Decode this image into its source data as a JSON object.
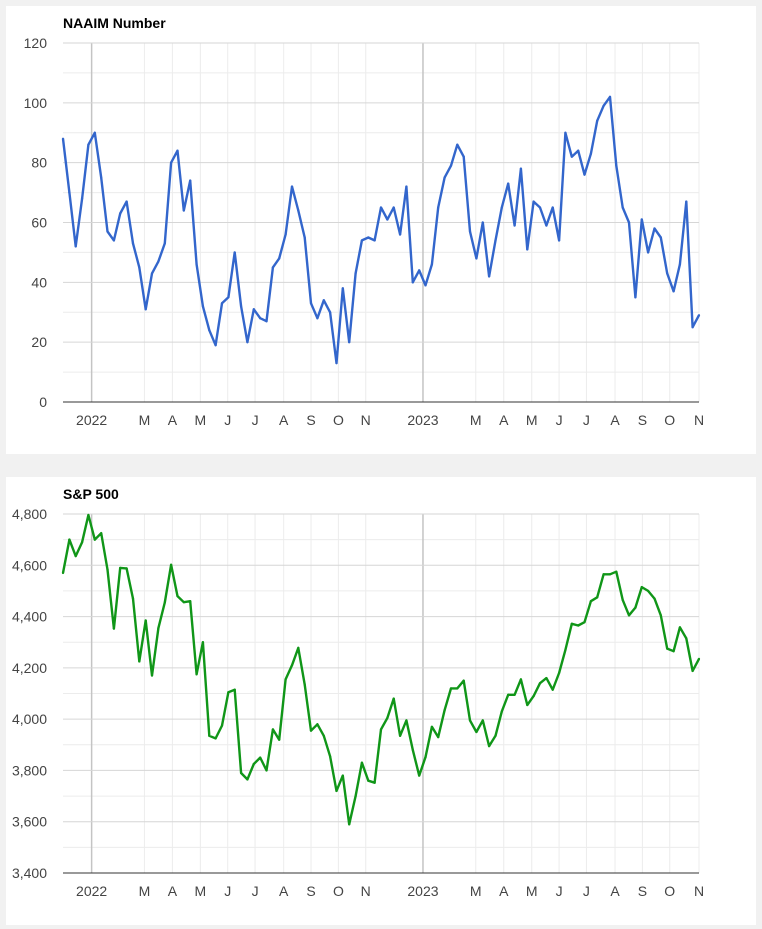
{
  "colors": {
    "naaim_line": "#3366cc",
    "sp500_line": "#109618",
    "grid_major": "#d6d6d6",
    "grid_minor": "#ececec",
    "year_line": "#c4c4c4"
  },
  "chart_data": [
    {
      "type": "line",
      "title": "NAAIM Number",
      "x_labels": [
        "2022",
        "M",
        "A",
        "M",
        "J",
        "J",
        "A",
        "S",
        "O",
        "N",
        "2023",
        "M",
        "A",
        "M",
        "J",
        "J",
        "A",
        "S",
        "O",
        "N"
      ],
      "y_ticks": [
        "0",
        "20",
        "40",
        "60",
        "80",
        "100",
        "120"
      ],
      "ylim": [
        0,
        120
      ],
      "grid": true,
      "series": [
        {
          "values": [
            88,
            70,
            52,
            68,
            86,
            90,
            75,
            57,
            54,
            63,
            67,
            53,
            45,
            31,
            43,
            47,
            53,
            80,
            84,
            64,
            74,
            46,
            32,
            24,
            19,
            33,
            35,
            50,
            32,
            20,
            31,
            28,
            27,
            45,
            48,
            56,
            72,
            64,
            55,
            33,
            28,
            34,
            30,
            13,
            38,
            20,
            43,
            54,
            55,
            54,
            65,
            61,
            65,
            56,
            72,
            40,
            44,
            39,
            46,
            65,
            75,
            79,
            86,
            82,
            57,
            48,
            60,
            42,
            54,
            65,
            73,
            59,
            78,
            51,
            67,
            65,
            59,
            65,
            54,
            90,
            82,
            84,
            76,
            83,
            94,
            99,
            102,
            79,
            65,
            60,
            35,
            61,
            50,
            58,
            55,
            43,
            37,
            46,
            67,
            25,
            29
          ]
        }
      ]
    },
    {
      "type": "line",
      "title": "S&P 500",
      "x_labels": [
        "2022",
        "M",
        "A",
        "M",
        "J",
        "J",
        "A",
        "S",
        "O",
        "N",
        "2023",
        "M",
        "A",
        "M",
        "J",
        "J",
        "A",
        "S",
        "O",
        "N"
      ],
      "y_ticks": [
        "3,400",
        "3,600",
        "3,800",
        "4,000",
        "4,200",
        "4,400",
        "4,600",
        "4,800"
      ],
      "ylim": [
        3400,
        4800
      ],
      "grid": true,
      "series": [
        {
          "values": [
            4570,
            4700,
            4636,
            4690,
            4796,
            4700,
            4725,
            4583,
            4353,
            4590,
            4588,
            4470,
            4225,
            4385,
            4170,
            4355,
            4455,
            4602,
            4480,
            4456,
            4460,
            4175,
            4300,
            3935,
            3925,
            3975,
            4105,
            4115,
            3790,
            3765,
            3825,
            3850,
            3800,
            3960,
            3920,
            4155,
            4210,
            4278,
            4135,
            3955,
            3980,
            3935,
            3855,
            3720,
            3780,
            3590,
            3700,
            3830,
            3760,
            3752,
            3960,
            4005,
            4080,
            3935,
            3995,
            3880,
            3780,
            3852,
            3970,
            3930,
            4035,
            4120,
            4120,
            4150,
            3995,
            3950,
            3995,
            3895,
            3935,
            4030,
            4095,
            4095,
            4155,
            4055,
            4090,
            4140,
            4160,
            4115,
            4180,
            4270,
            4372,
            4365,
            4378,
            4460,
            4475,
            4565,
            4565,
            4575,
            4465,
            4405,
            4435,
            4515,
            4500,
            4470,
            4405,
            4275,
            4265,
            4358,
            4315,
            4188,
            4235
          ]
        }
      ]
    }
  ]
}
